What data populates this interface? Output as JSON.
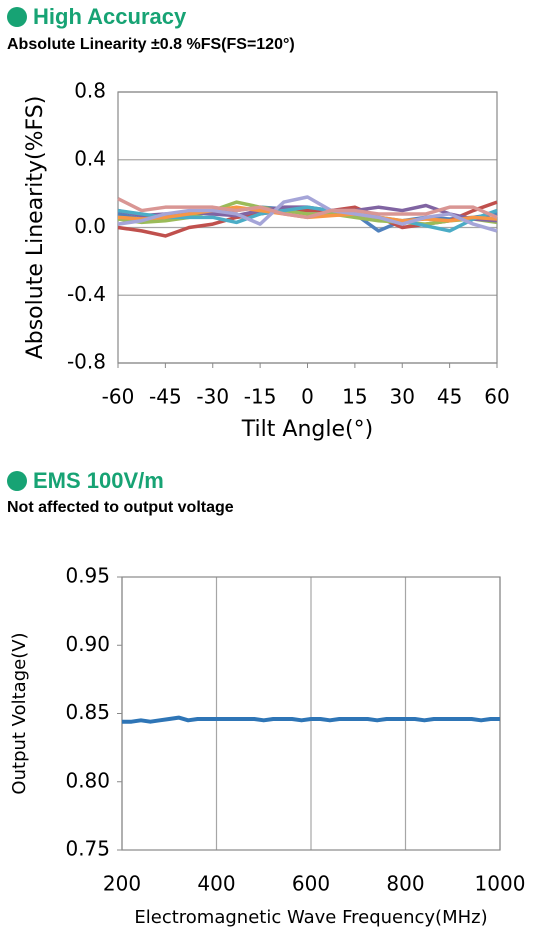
{
  "chart_data": [
    {
      "type": "line",
      "title": "High Accuracy",
      "subtitle": "Absolute Linearity ±0.8 %FS(FS=120°)",
      "x_label": "Tilt Angle(°)",
      "y_label": "Absolute Linearity(%FS)",
      "x": [
        -60,
        -52.5,
        -45,
        -37.5,
        -30,
        -22.5,
        -15,
        -7.5,
        0,
        7.5,
        15,
        22.5,
        30,
        37.5,
        45,
        52.5,
        60
      ],
      "xlim": [
        -60,
        60
      ],
      "xticks": [
        -60,
        -45,
        -30,
        -15,
        0,
        15,
        30,
        45,
        60
      ],
      "ylim": [
        -0.8,
        0.8
      ],
      "yticks": [
        0.8,
        0.4,
        {
          "value": 0,
          "label": "0.0"
        },
        -0.4,
        -0.8
      ],
      "grid": "y",
      "series": [
        {
          "color": "#4f81bd",
          "values": [
            0.08,
            0.05,
            0.06,
            0.08,
            0.1,
            0.1,
            0.12,
            0.11,
            0.1,
            0.1,
            0.08,
            -0.02,
            0.04,
            0.06,
            0.05,
            0.06,
            0.08
          ]
        },
        {
          "color": "#c0504d",
          "values": [
            0.0,
            -0.02,
            -0.05,
            0.0,
            0.02,
            0.06,
            0.08,
            0.1,
            0.1,
            0.1,
            0.12,
            0.06,
            0.0,
            0.02,
            0.04,
            0.1,
            0.15
          ]
        },
        {
          "color": "#9bbb59",
          "values": [
            0.05,
            0.03,
            0.04,
            0.06,
            0.1,
            0.15,
            0.12,
            0.1,
            0.08,
            0.08,
            0.06,
            0.04,
            0.03,
            0.02,
            0.04,
            0.05,
            0.03
          ]
        },
        {
          "color": "#8064a2",
          "values": [
            0.1,
            0.07,
            0.08,
            0.09,
            0.08,
            0.07,
            0.1,
            0.12,
            0.12,
            0.1,
            0.1,
            0.12,
            0.1,
            0.13,
            0.08,
            0.05,
            0.04
          ]
        },
        {
          "color": "#4bacc6",
          "values": [
            0.1,
            0.08,
            0.06,
            0.06,
            0.06,
            0.03,
            0.08,
            0.1,
            0.12,
            0.1,
            0.08,
            0.06,
            0.04,
            0.01,
            -0.02,
            0.05,
            0.1
          ]
        },
        {
          "color": "#f79646",
          "values": [
            0.06,
            0.05,
            0.06,
            0.08,
            0.1,
            0.12,
            0.1,
            0.08,
            0.06,
            0.07,
            0.08,
            0.06,
            0.04,
            0.05,
            0.04,
            0.06,
            0.05
          ]
        },
        {
          "color": "#a5a5d8",
          "values": [
            0.02,
            0.04,
            0.08,
            0.1,
            0.1,
            0.08,
            0.02,
            0.15,
            0.18,
            0.1,
            0.08,
            0.06,
            0.02,
            0.06,
            0.08,
            0.02,
            -0.02
          ]
        },
        {
          "color": "#d99694",
          "values": [
            0.17,
            0.1,
            0.12,
            0.12,
            0.12,
            0.1,
            0.12,
            0.08,
            0.06,
            0.1,
            0.1,
            0.08,
            0.08,
            0.08,
            0.12,
            0.12,
            0.06
          ]
        }
      ]
    },
    {
      "type": "line",
      "title": "EMS 100V/m",
      "subtitle": "Not affected to output voltage",
      "x_label": "Electromagnetic Wave Frequency(MHz)",
      "y_label": "Output Voltage(V)",
      "x": [
        200,
        220,
        240,
        260,
        280,
        300,
        320,
        340,
        360,
        380,
        400,
        420,
        440,
        460,
        480,
        500,
        520,
        540,
        560,
        580,
        600,
        620,
        640,
        660,
        680,
        700,
        720,
        740,
        760,
        780,
        800,
        820,
        840,
        860,
        880,
        900,
        920,
        940,
        960,
        980,
        1000
      ],
      "xlim": [
        200,
        1000
      ],
      "xticks": [
        200,
        400,
        600,
        800,
        1000
      ],
      "ylim": [
        0.75,
        0.95
      ],
      "yticks": [
        0.95,
        {
          "value": 0.9,
          "label": "0.90"
        },
        0.85,
        {
          "value": 0.8,
          "label": "0.80"
        },
        0.75
      ],
      "grid": "x",
      "series": [
        {
          "color": "#2e75b6",
          "values": [
            0.844,
            0.844,
            0.845,
            0.844,
            0.845,
            0.846,
            0.847,
            0.845,
            0.846,
            0.846,
            0.846,
            0.846,
            0.846,
            0.846,
            0.846,
            0.845,
            0.846,
            0.846,
            0.846,
            0.845,
            0.846,
            0.846,
            0.845,
            0.846,
            0.846,
            0.846,
            0.846,
            0.845,
            0.846,
            0.846,
            0.846,
            0.846,
            0.845,
            0.846,
            0.846,
            0.846,
            0.846,
            0.846,
            0.845,
            0.846,
            0.846
          ]
        }
      ]
    }
  ]
}
